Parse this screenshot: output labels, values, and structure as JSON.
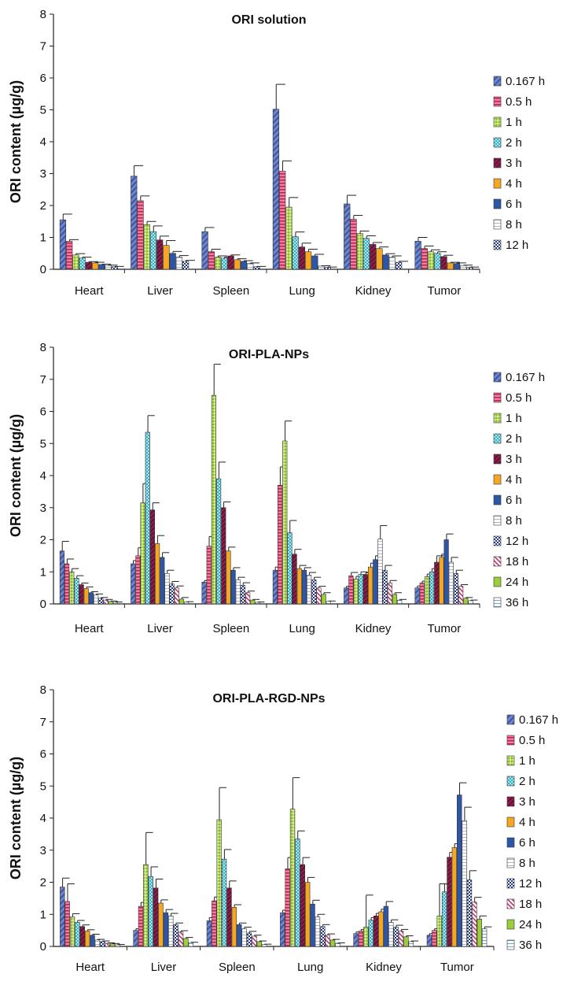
{
  "chart_data": [
    {
      "type": "bar",
      "title": "ORI solution",
      "ylabel": "ORI content (µg/g)",
      "xlabel": "",
      "ylim": [
        0,
        8
      ],
      "yticks": [
        "0",
        "1",
        "2",
        "3",
        "4",
        "5",
        "6",
        "7",
        "8"
      ],
      "categories": [
        "Heart",
        "Liver",
        "Spleen",
        "Lung",
        "Kidney",
        "Tumor"
      ],
      "series": [
        {
          "name": "0.167 h",
          "values": [
            1.55,
            2.92,
            1.18,
            5.02,
            2.05,
            0.88
          ],
          "errors": [
            0.18,
            0.33,
            0.13,
            0.78,
            0.27,
            0.12
          ]
        },
        {
          "name": "0.5 h",
          "values": [
            0.88,
            2.15,
            0.55,
            3.08,
            1.57,
            0.65
          ],
          "errors": [
            0.05,
            0.15,
            0.08,
            0.32,
            0.12,
            0.08
          ]
        },
        {
          "name": "1 h",
          "values": [
            0.45,
            1.4,
            0.38,
            1.95,
            1.12,
            0.55
          ],
          "errors": [
            0.04,
            0.1,
            0.04,
            0.3,
            0.08,
            0.06
          ]
        },
        {
          "name": "2 h",
          "values": [
            0.35,
            1.18,
            0.35,
            1.02,
            0.97,
            0.5
          ],
          "errors": [
            0.03,
            0.18,
            0.03,
            0.15,
            0.08,
            0.05
          ]
        },
        {
          "name": "3 h",
          "values": [
            0.22,
            0.92,
            0.42,
            0.7,
            0.78,
            0.4
          ],
          "errors": [
            0.02,
            0.12,
            0.03,
            0.12,
            0.06,
            0.04
          ]
        },
        {
          "name": "4 h",
          "values": [
            0.2,
            0.75,
            0.3,
            0.55,
            0.65,
            0.2
          ],
          "errors": [
            0.02,
            0.15,
            0.03,
            0.08,
            0.05,
            0.02
          ]
        },
        {
          "name": "6 h",
          "values": [
            0.15,
            0.5,
            0.25,
            0.42,
            0.45,
            0.18
          ],
          "errors": [
            0.01,
            0.06,
            0.02,
            0.05,
            0.04,
            0.02
          ]
        },
        {
          "name": "8 h",
          "values": [
            0.12,
            0.38,
            0.18,
            0.1,
            0.38,
            0.12
          ],
          "errors": [
            0.01,
            0.05,
            0.02,
            0.01,
            0.04,
            0.01
          ]
        },
        {
          "name": "12 h",
          "values": [
            0.08,
            0.25,
            0.08,
            0.06,
            0.22,
            0.06
          ],
          "errors": [
            0.01,
            0.03,
            0.01,
            0.01,
            0.03,
            0.01
          ]
        }
      ]
    },
    {
      "type": "bar",
      "title": "ORI-PLA-NPs",
      "ylabel": "ORI content (µg/g)",
      "xlabel": "",
      "ylim": [
        0,
        8
      ],
      "yticks": [
        "0",
        "1",
        "2",
        "3",
        "4",
        "5",
        "6",
        "7",
        "8"
      ],
      "categories": [
        "Heart",
        "Liver",
        "Spleen",
        "Lung",
        "Kidney",
        "Tumor"
      ],
      "series": [
        {
          "name": "0.167 h",
          "values": [
            1.65,
            1.25,
            0.68,
            1.05,
            0.5,
            0.5
          ],
          "errors": [
            0.3,
            0.1,
            0.05,
            0.1,
            0.05,
            0.06
          ]
        },
        {
          "name": "0.5 h",
          "values": [
            1.25,
            1.5,
            1.8,
            3.7,
            0.88,
            0.65
          ],
          "errors": [
            0.15,
            0.25,
            0.3,
            0.57,
            0.1,
            0.06
          ]
        },
        {
          "name": "1 h",
          "values": [
            1.0,
            3.15,
            6.5,
            5.08,
            0.78,
            0.85
          ],
          "errors": [
            0.1,
            0.6,
            0.97,
            0.62,
            0.08,
            0.08
          ]
        },
        {
          "name": "2 h",
          "values": [
            0.8,
            5.35,
            3.9,
            2.22,
            0.92,
            1.0
          ],
          "errors": [
            0.08,
            0.52,
            0.52,
            0.38,
            0.08,
            0.1
          ]
        },
        {
          "name": "3 h",
          "values": [
            0.6,
            2.93,
            3.0,
            1.55,
            0.92,
            1.3
          ],
          "errors": [
            0.05,
            0.22,
            0.18,
            0.15,
            0.05,
            0.2
          ]
        },
        {
          "name": "4 h",
          "values": [
            0.48,
            1.88,
            1.65,
            1.1,
            1.15,
            1.45
          ],
          "errors": [
            0.05,
            0.25,
            0.12,
            0.1,
            0.12,
            0.1
          ]
        },
        {
          "name": "6 h",
          "values": [
            0.35,
            1.45,
            1.05,
            1.05,
            1.38,
            2.0
          ],
          "errors": [
            0.03,
            0.15,
            0.08,
            0.08,
            0.12,
            0.18
          ]
        },
        {
          "name": "8 h",
          "values": [
            0.28,
            0.95,
            0.75,
            0.9,
            2.02,
            1.3
          ],
          "errors": [
            0.03,
            0.1,
            0.08,
            0.08,
            0.42,
            0.15
          ]
        },
        {
          "name": "12 h",
          "values": [
            0.18,
            0.62,
            0.58,
            0.75,
            1.05,
            0.95
          ],
          "errors": [
            0.02,
            0.08,
            0.08,
            0.08,
            0.15,
            0.1
          ]
        },
        {
          "name": "18 h",
          "values": [
            0.12,
            0.5,
            0.35,
            0.5,
            0.65,
            0.55
          ],
          "errors": [
            0.02,
            0.06,
            0.05,
            0.05,
            0.08,
            0.05
          ]
        },
        {
          "name": "24 h",
          "values": [
            0.08,
            0.15,
            0.12,
            0.3,
            0.3,
            0.18
          ],
          "errors": [
            0.01,
            0.05,
            0.02,
            0.05,
            0.05,
            0.02
          ]
        },
        {
          "name": "36 h",
          "values": [
            0.05,
            0.06,
            0.05,
            0.08,
            0.12,
            0.1
          ],
          "errors": [
            0.01,
            0.01,
            0.01,
            0.01,
            0.02,
            0.02
          ]
        }
      ]
    },
    {
      "type": "bar",
      "title": "ORI-PLA-RGD-NPs",
      "ylabel": "ORI content (µg/g)",
      "xlabel": "",
      "ylim": [
        0,
        8
      ],
      "yticks": [
        "0",
        "1",
        "2",
        "3",
        "4",
        "5",
        "6",
        "7",
        "8"
      ],
      "categories": [
        "Heart",
        "Liver",
        "Spleen",
        "Lung",
        "Kidney",
        "Tumor"
      ],
      "series": [
        {
          "name": "0.167 h",
          "values": [
            1.85,
            0.5,
            0.8,
            1.05,
            0.4,
            0.35
          ],
          "errors": [
            0.28,
            0.05,
            0.1,
            0.08,
            0.05,
            0.05
          ]
        },
        {
          "name": "0.5 h",
          "values": [
            1.4,
            1.25,
            1.42,
            2.42,
            0.48,
            0.5
          ],
          "errors": [
            0.55,
            0.12,
            0.12,
            0.35,
            0.05,
            0.05
          ]
        },
        {
          "name": "1 h",
          "values": [
            0.92,
            2.55,
            3.95,
            4.28,
            0.6,
            0.95
          ],
          "errors": [
            0.1,
            1.0,
            1.0,
            0.98,
            1.0,
            1.0
          ]
        },
        {
          "name": "2 h",
          "values": [
            0.75,
            2.18,
            2.72,
            3.35,
            0.82,
            1.7
          ],
          "errors": [
            0.06,
            0.3,
            0.3,
            0.25,
            0.08,
            0.25
          ]
        },
        {
          "name": "3 h",
          "values": [
            0.62,
            1.82,
            1.82,
            2.55,
            0.95,
            2.78
          ],
          "errors": [
            0.05,
            0.28,
            0.22,
            0.22,
            0.08,
            0.15
          ]
        },
        {
          "name": "4 h",
          "values": [
            0.48,
            1.35,
            1.22,
            2.0,
            1.08,
            3.08
          ],
          "errors": [
            0.04,
            0.1,
            0.08,
            0.15,
            0.08,
            0.12
          ]
        },
        {
          "name": "6 h",
          "values": [
            0.35,
            1.05,
            0.68,
            1.32,
            1.25,
            4.72
          ],
          "errors": [
            0.03,
            0.1,
            0.05,
            0.12,
            0.15,
            0.38
          ]
        },
        {
          "name": "8 h",
          "values": [
            0.2,
            0.95,
            0.55,
            0.92,
            0.75,
            3.92
          ],
          "errors": [
            0.02,
            0.08,
            0.05,
            0.08,
            0.08,
            0.42
          ]
        },
        {
          "name": "12 h",
          "values": [
            0.15,
            0.68,
            0.42,
            0.62,
            0.6,
            2.08
          ],
          "errors": [
            0.02,
            0.05,
            0.05,
            0.06,
            0.06,
            0.28
          ]
        },
        {
          "name": "18 h",
          "values": [
            0.1,
            0.45,
            0.32,
            0.35,
            0.48,
            1.38
          ],
          "errors": [
            0.01,
            0.04,
            0.03,
            0.04,
            0.05,
            0.15
          ]
        },
        {
          "name": "24 h",
          "values": [
            0.08,
            0.25,
            0.15,
            0.2,
            0.3,
            0.85
          ],
          "errors": [
            0.01,
            0.03,
            0.02,
            0.02,
            0.03,
            0.1
          ]
        },
        {
          "name": "36 h",
          "values": [
            0.05,
            0.12,
            0.06,
            0.1,
            0.15,
            0.55
          ],
          "errors": [
            0.01,
            0.01,
            0.01,
            0.01,
            0.02,
            0.06
          ]
        }
      ]
    }
  ],
  "styles": {
    "series_colors": [
      "#6f86cc",
      "#e8557a",
      "#a6d24a",
      "#9fe0e8",
      "#8c1f4d",
      "#f5a623",
      "#2e56a6",
      "#ffffff",
      "#ffffff",
      "#ffffff",
      "#9ccd3c",
      "#ffffff"
    ],
    "series_patterns": [
      "diag",
      "hstripes",
      "dots",
      "check",
      "diag",
      "solid",
      "solid",
      "hline",
      "checker",
      "diagpink",
      "solid",
      "hline"
    ],
    "axis_color": "#222222"
  }
}
